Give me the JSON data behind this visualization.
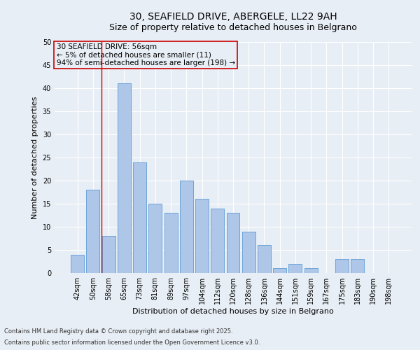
{
  "title": "30, SEAFIELD DRIVE, ABERGELE, LL22 9AH",
  "subtitle": "Size of property relative to detached houses in Belgrano",
  "xlabel": "Distribution of detached houses by size in Belgrano",
  "ylabel": "Number of detached properties",
  "categories": [
    "42sqm",
    "50sqm",
    "58sqm",
    "65sqm",
    "73sqm",
    "81sqm",
    "89sqm",
    "97sqm",
    "104sqm",
    "112sqm",
    "120sqm",
    "128sqm",
    "136sqm",
    "144sqm",
    "151sqm",
    "159sqm",
    "167sqm",
    "175sqm",
    "183sqm",
    "190sqm",
    "198sqm"
  ],
  "values": [
    4,
    18,
    8,
    41,
    24,
    15,
    13,
    20,
    16,
    14,
    13,
    9,
    6,
    1,
    2,
    1,
    0,
    3,
    3,
    0,
    0
  ],
  "bar_color": "#aec6e8",
  "bar_edge_color": "#5b9bd5",
  "annotation_box_text": "30 SEAFIELD DRIVE: 56sqm\n← 5% of detached houses are smaller (11)\n94% of semi-detached houses are larger (198) →",
  "annotation_box_color": "#cc0000",
  "background_color": "#e8eef5",
  "grid_color": "#ffffff",
  "footer_line1": "Contains HM Land Registry data © Crown copyright and database right 2025.",
  "footer_line2": "Contains public sector information licensed under the Open Government Licence v3.0.",
  "ylim": [
    0,
    50
  ],
  "yticks": [
    0,
    5,
    10,
    15,
    20,
    25,
    30,
    35,
    40,
    45,
    50
  ],
  "title_fontsize": 10,
  "subtitle_fontsize": 9,
  "axis_label_fontsize": 8,
  "tick_fontsize": 7,
  "annotation_fontsize": 7.5,
  "footer_fontsize": 6,
  "ylabel_fontsize": 8
}
